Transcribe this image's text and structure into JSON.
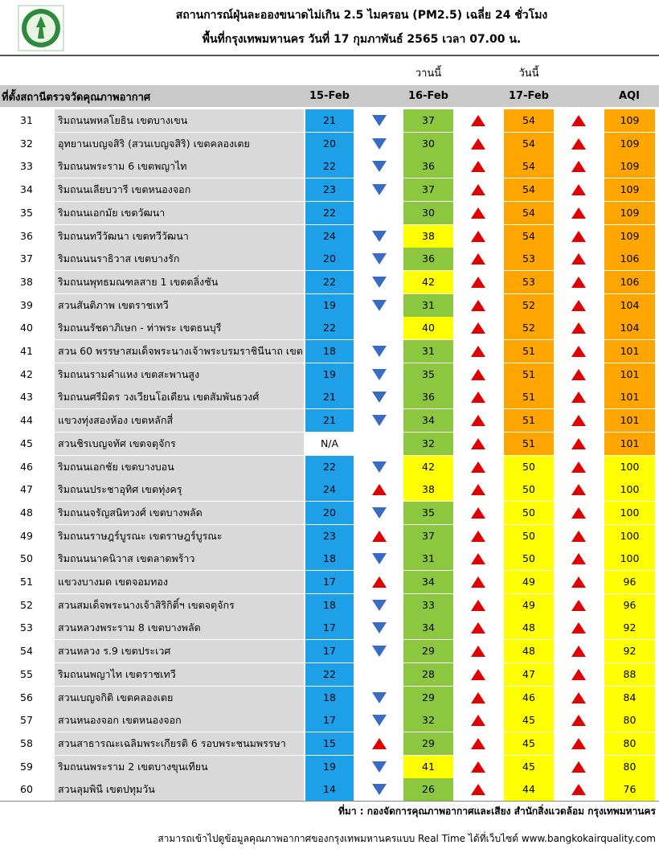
{
  "header": {
    "title": "สถานการณ์ฝุ่นละอองขนาดไม่เกิน 2.5 ไมครอน (PM2.5) เฉลี่ย 24 ชั่วโมง",
    "subtitle": "พื้นที่กรุงเทพมหานคร วันที่ 17 กุมภาพันธ์ 2565 เวลา 07.00 น."
  },
  "table": {
    "group_labels": [
      "วานนี้",
      "วันนี้"
    ],
    "columns": [
      "ที่ตั้งสถานีตรวจวัดคุณภาพอากาศ",
      "15-Feb",
      "16-Feb",
      "17-Feb",
      "AQI"
    ],
    "rows": [
      [
        31,
        "ริมถนนพหลโยธิน เขตบางเขน",
        21,
        37,
        54,
        109
      ],
      [
        32,
        "อุทยานเบญจสิริ (สวนเบญจสิริ) เขตคลองเตย",
        20,
        30,
        54,
        109
      ],
      [
        33,
        "ริมถนนพระราม 6 เขตพญาไท",
        22,
        36,
        54,
        109
      ],
      [
        34,
        "ริมถนนเลียบวารี เขตหนองจอก",
        23,
        37,
        54,
        109
      ],
      [
        35,
        "ริมถนนเอกมัย เขตวัฒนา",
        22,
        30,
        54,
        109
      ],
      [
        36,
        "ริมถนนทวีวัฒนา เขตทวีวัฒนา",
        24,
        38,
        54,
        109
      ],
      [
        37,
        "ริมถนนนราธิวาส เขตบางรัก",
        20,
        36,
        53,
        106
      ],
      [
        38,
        "ริมถนนพุทธมณฑลสาย 1 เขตตลิ่งชัน",
        22,
        42,
        53,
        106
      ],
      [
        39,
        "สวนสันติภาพ เขตราชเทวี",
        19,
        31,
        52,
        104
      ],
      [
        40,
        "ริมถนนรัชดาภิเษก - ท่าพระ เขตธนบุรี",
        22,
        40,
        52,
        104
      ],
      [
        41,
        "สวน 60 พรรษาสมเด็จพระนางเจ้าพระบรมราชินีนาถ เขต",
        18,
        31,
        51,
        101
      ],
      [
        42,
        "ริมถนนรามคำแหง เขตสะพานสูง",
        19,
        35,
        51,
        101
      ],
      [
        43,
        "ริมถนนศรีมิตร วงเวียนโอเดียน เขตสัมพันธวงศ์",
        21,
        36,
        51,
        101
      ],
      [
        44,
        "แขวงทุ่งสองห้อง เขตหลักสี่",
        21,
        34,
        51,
        101
      ],
      [
        45,
        "สวนชิรเบญจทัศ เขตจตุจักร",
        "N/A",
        32,
        51,
        101
      ],
      [
        46,
        "ริมถนนเอกชัย เขตบางบอน",
        22,
        42,
        50,
        100
      ],
      [
        47,
        "ริมถนนประชาอุทิศ เขตทุ่งครุ",
        24,
        38,
        50,
        100
      ],
      [
        48,
        "ริมถนนจรัญสนิทวงศ์ เขตบางพลัด",
        20,
        35,
        50,
        100
      ],
      [
        49,
        "ริมถนนราษฎร์บูรณะ เขตราษฎร์บูรณะ",
        23,
        37,
        50,
        100
      ],
      [
        50,
        "ริมถนนนาคนิวาส เขตลาดพร้าว",
        18,
        31,
        50,
        100
      ],
      [
        51,
        "แขวงบางมด เขตจอมทอง",
        17,
        34,
        49,
        96
      ],
      [
        52,
        "สวนสมเด็จพระนางเจ้าสิริกิติ์ฯ เขตจตุจักร",
        18,
        33,
        49,
        96
      ],
      [
        53,
        "สวนหลวงพระราม 8 เขตบางพลัด",
        17,
        34,
        48,
        92
      ],
      [
        54,
        "สวนหลวง ร.9 เขตประเวศ",
        17,
        29,
        48,
        92
      ],
      [
        55,
        "ริมถนนพญาไท เขตราชเทวี",
        22,
        28,
        47,
        88
      ],
      [
        56,
        "สวนเบญจกิติ เขตคลองเตย",
        18,
        29,
        46,
        84
      ],
      [
        57,
        "สวนหนองจอก เขตหนองจอก",
        17,
        32,
        45,
        80
      ],
      [
        58,
        "สวนสาธารณะเฉลิมพระเกียรติ 6 รอบพระชนมพรรษา",
        15,
        29,
        45,
        80
      ],
      [
        59,
        "ริมถนนพระราม 2 เขตบางขุนเทียน",
        19,
        41,
        45,
        80
      ],
      [
        60,
        "สวนลุมพินี เขตปทุมวัน",
        14,
        26,
        44,
        76
      ]
    ]
  },
  "footer": {
    "source": "ที่มา : กองจัดการคุณภาพอากาศและเสียง สำนักสิ่งแวดล้อม กรุงเทพมหานคร",
    "note": "สามารถเข้าไปดูข้อมูลคุณภาพอากาศของกรุงเทพมหานครแบบ Real Time ได้ที่เว็บไซต์ www.bangkokairquality.com"
  }
}
